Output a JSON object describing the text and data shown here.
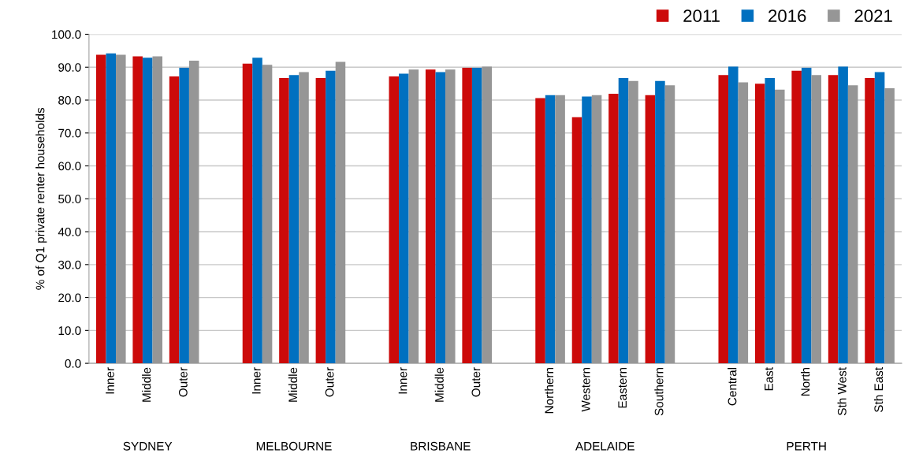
{
  "chart_data": {
    "type": "bar",
    "ylabel": "% of Q1 private renter households",
    "categories": [
      "Inner",
      "Middle",
      "Outer",
      null,
      "Inner",
      "Middle",
      "Outer",
      null,
      "Inner",
      "Middle",
      "Outer",
      null,
      "Northern",
      "Western",
      "Eastern",
      "Southern",
      null,
      "Central",
      "East",
      "North",
      "Sth West",
      "Sth East"
    ],
    "series": [
      {
        "name": "2011",
        "color": "#cc0a0a",
        "values": [
          93.8,
          93.3,
          87.2,
          null,
          91.1,
          86.7,
          86.7,
          null,
          87.2,
          89.3,
          89.8,
          null,
          80.6,
          74.8,
          81.9,
          81.5,
          null,
          87.6,
          85.0,
          88.9,
          87.6,
          86.7
        ]
      },
      {
        "name": "2016",
        "color": "#0070c0",
        "values": [
          94.2,
          92.9,
          89.8,
          null,
          92.9,
          87.6,
          88.9,
          null,
          88.0,
          88.5,
          89.8,
          null,
          81.5,
          81.1,
          86.7,
          85.8,
          null,
          90.2,
          86.7,
          89.8,
          90.2,
          88.5
        ]
      },
      {
        "name": "2021",
        "color": "#969696",
        "values": [
          93.8,
          93.3,
          92.0,
          null,
          90.7,
          88.5,
          91.6,
          null,
          89.3,
          89.3,
          90.2,
          null,
          81.5,
          81.5,
          85.8,
          84.5,
          null,
          85.4,
          83.2,
          87.6,
          84.5,
          83.6
        ]
      }
    ],
    "annotations": [
      "SYDNEY",
      "MELBOURNE",
      "BRISBANE",
      "ADELAIDE",
      "PERTH"
    ],
    "ylim": [
      0,
      100
    ],
    "yticks": [
      {
        "value": 0,
        "label": "0.0"
      },
      {
        "value": 10,
        "label": "10.0"
      },
      {
        "value": 20,
        "label": "20.0"
      },
      {
        "value": 30,
        "label": "30.0"
      },
      {
        "value": 40,
        "label": "40.0"
      },
      {
        "value": 50,
        "label": "50.0"
      },
      {
        "value": 60,
        "label": "60.0"
      },
      {
        "value": 70,
        "label": "70.0"
      },
      {
        "value": 80,
        "label": "80.0"
      },
      {
        "value": 90,
        "label": "90.0"
      },
      {
        "value": 100,
        "label": "100.0"
      }
    ],
    "grid": "y",
    "legend": "top right"
  }
}
